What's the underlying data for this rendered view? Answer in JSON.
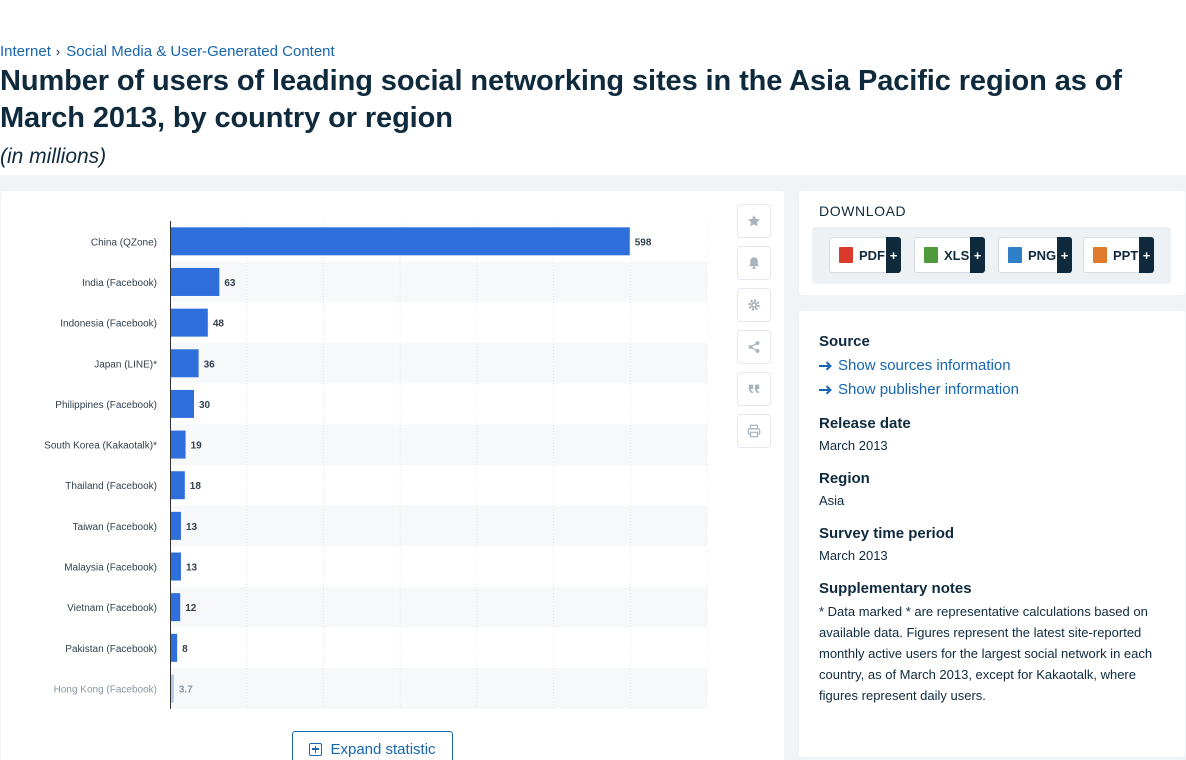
{
  "breadcrumb": {
    "item1": "Internet",
    "item2": "Social Media & User-Generated Content"
  },
  "title": "Number of users of leading social networking sites in the Asia Pacific region as of March 2013, by country or region",
  "subtitle": "(in millions)",
  "chart_data": {
    "type": "bar",
    "orientation": "horizontal",
    "categories": [
      "China (QZone)",
      "India (Facebook)",
      "Indonesia (Facebook)",
      "Japan (LINE)*",
      "Philippines (Facebook)",
      "South Korea (Kakaotalk)*",
      "Thailand (Facebook)",
      "Taiwan (Facebook)",
      "Malaysia (Facebook)",
      "Vietnam (Facebook)",
      "Pakistan (Facebook)",
      "Hong Kong (Facebook)"
    ],
    "values": [
      598,
      63,
      48,
      36,
      30,
      19,
      18,
      13,
      13,
      12,
      8,
      3.7
    ],
    "value_labels": [
      "598",
      "63",
      "48",
      "36",
      "30",
      "19",
      "18",
      "13",
      "13",
      "12",
      "8",
      "3.7"
    ],
    "xlim": [
      0,
      700
    ],
    "grid": true,
    "bar_color": "#2f6fdb"
  },
  "toolbar": {
    "icons": [
      "star-icon",
      "bell-icon",
      "gear-icon",
      "share-icon",
      "quote-icon",
      "print-icon"
    ]
  },
  "expand_label": "Expand statistic",
  "download": {
    "title": "DOWNLOAD",
    "buttons": [
      {
        "label": "PDF",
        "plus": "+",
        "icon": "pdf-file-icon",
        "color": "#d93a2b"
      },
      {
        "label": "XLS",
        "plus": "+",
        "icon": "xls-file-icon",
        "color": "#4f9a3a"
      },
      {
        "label": "PNG",
        "plus": "+",
        "icon": "png-file-icon",
        "color": "#2f7fc8"
      },
      {
        "label": "PPT",
        "plus": "+",
        "icon": "ppt-file-icon",
        "color": "#e07a2c"
      }
    ]
  },
  "info": {
    "source_heading": "Source",
    "show_sources": "Show sources information",
    "show_publisher": "Show publisher information",
    "release_heading": "Release date",
    "release_value": "March 2013",
    "region_heading": "Region",
    "region_value": "Asia",
    "survey_heading": "Survey time period",
    "survey_value": "March 2013",
    "notes_heading": "Supplementary notes",
    "notes_text": "* Data marked * are representative calculations based on available data. Figures represent the latest site-reported monthly active users for the largest social network in each country, as of March 2013, except for Kakaotalk, where figures represent daily users."
  }
}
